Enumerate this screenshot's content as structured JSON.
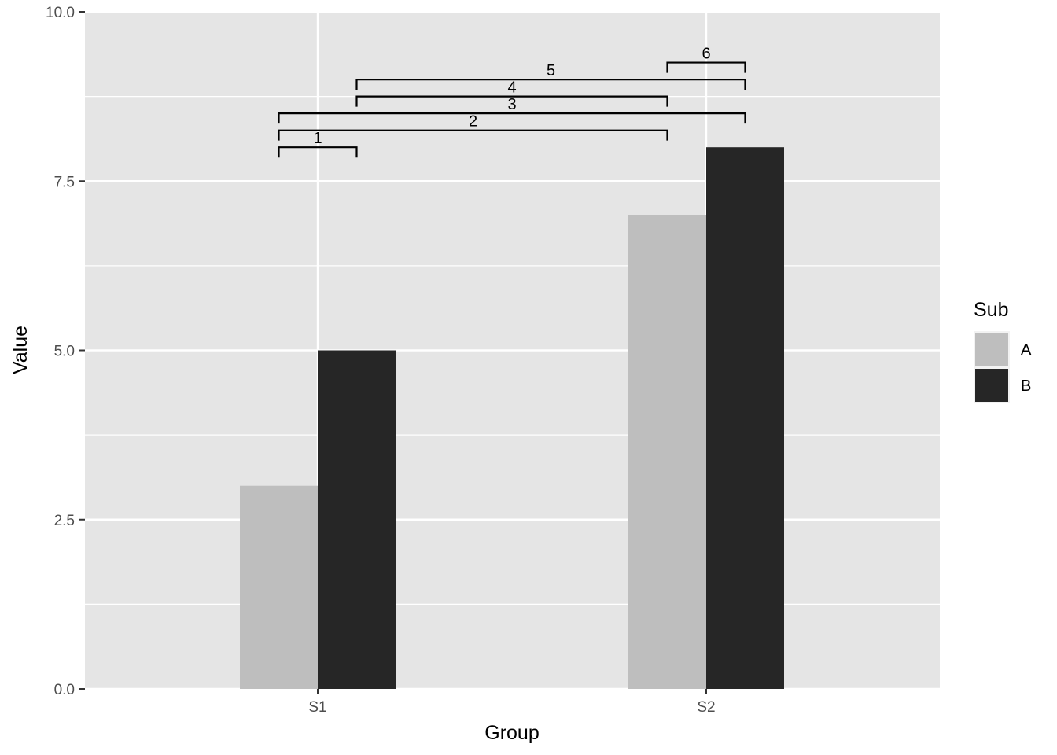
{
  "chart_data": {
    "type": "bar",
    "categories": [
      "S1",
      "S2"
    ],
    "series": [
      {
        "name": "A",
        "values": [
          3,
          7
        ],
        "color": "#BEBEBE"
      },
      {
        "name": "B",
        "values": [
          5,
          8
        ],
        "color": "#262626"
      }
    ],
    "xlabel": "Group",
    "ylabel": "Value",
    "ylim": [
      0,
      10
    ],
    "yticks": [
      0,
      2.5,
      5,
      7.5,
      10
    ],
    "ytick_labels": [
      "0.0",
      "2.5",
      "5.0",
      "7.5",
      "10.0"
    ],
    "legend": {
      "title": "Sub",
      "position": "right"
    },
    "grid": true,
    "panel_color": "#E5E5E5",
    "brackets": [
      {
        "label": "1",
        "from": {
          "group": "S1",
          "sub": "A"
        },
        "to": {
          "group": "S1",
          "sub": "B"
        },
        "y": 8.0
      },
      {
        "label": "2",
        "from": {
          "group": "S1",
          "sub": "A"
        },
        "to": {
          "group": "S2",
          "sub": "A"
        },
        "y": 8.25
      },
      {
        "label": "3",
        "from": {
          "group": "S1",
          "sub": "A"
        },
        "to": {
          "group": "S2",
          "sub": "B"
        },
        "y": 8.5
      },
      {
        "label": "4",
        "from": {
          "group": "S1",
          "sub": "B"
        },
        "to": {
          "group": "S2",
          "sub": "A"
        },
        "y": 8.75
      },
      {
        "label": "5",
        "from": {
          "group": "S1",
          "sub": "B"
        },
        "to": {
          "group": "S2",
          "sub": "B"
        },
        "y": 9.0
      },
      {
        "label": "6",
        "from": {
          "group": "S2",
          "sub": "A"
        },
        "to": {
          "group": "S2",
          "sub": "B"
        },
        "y": 9.25
      }
    ]
  }
}
